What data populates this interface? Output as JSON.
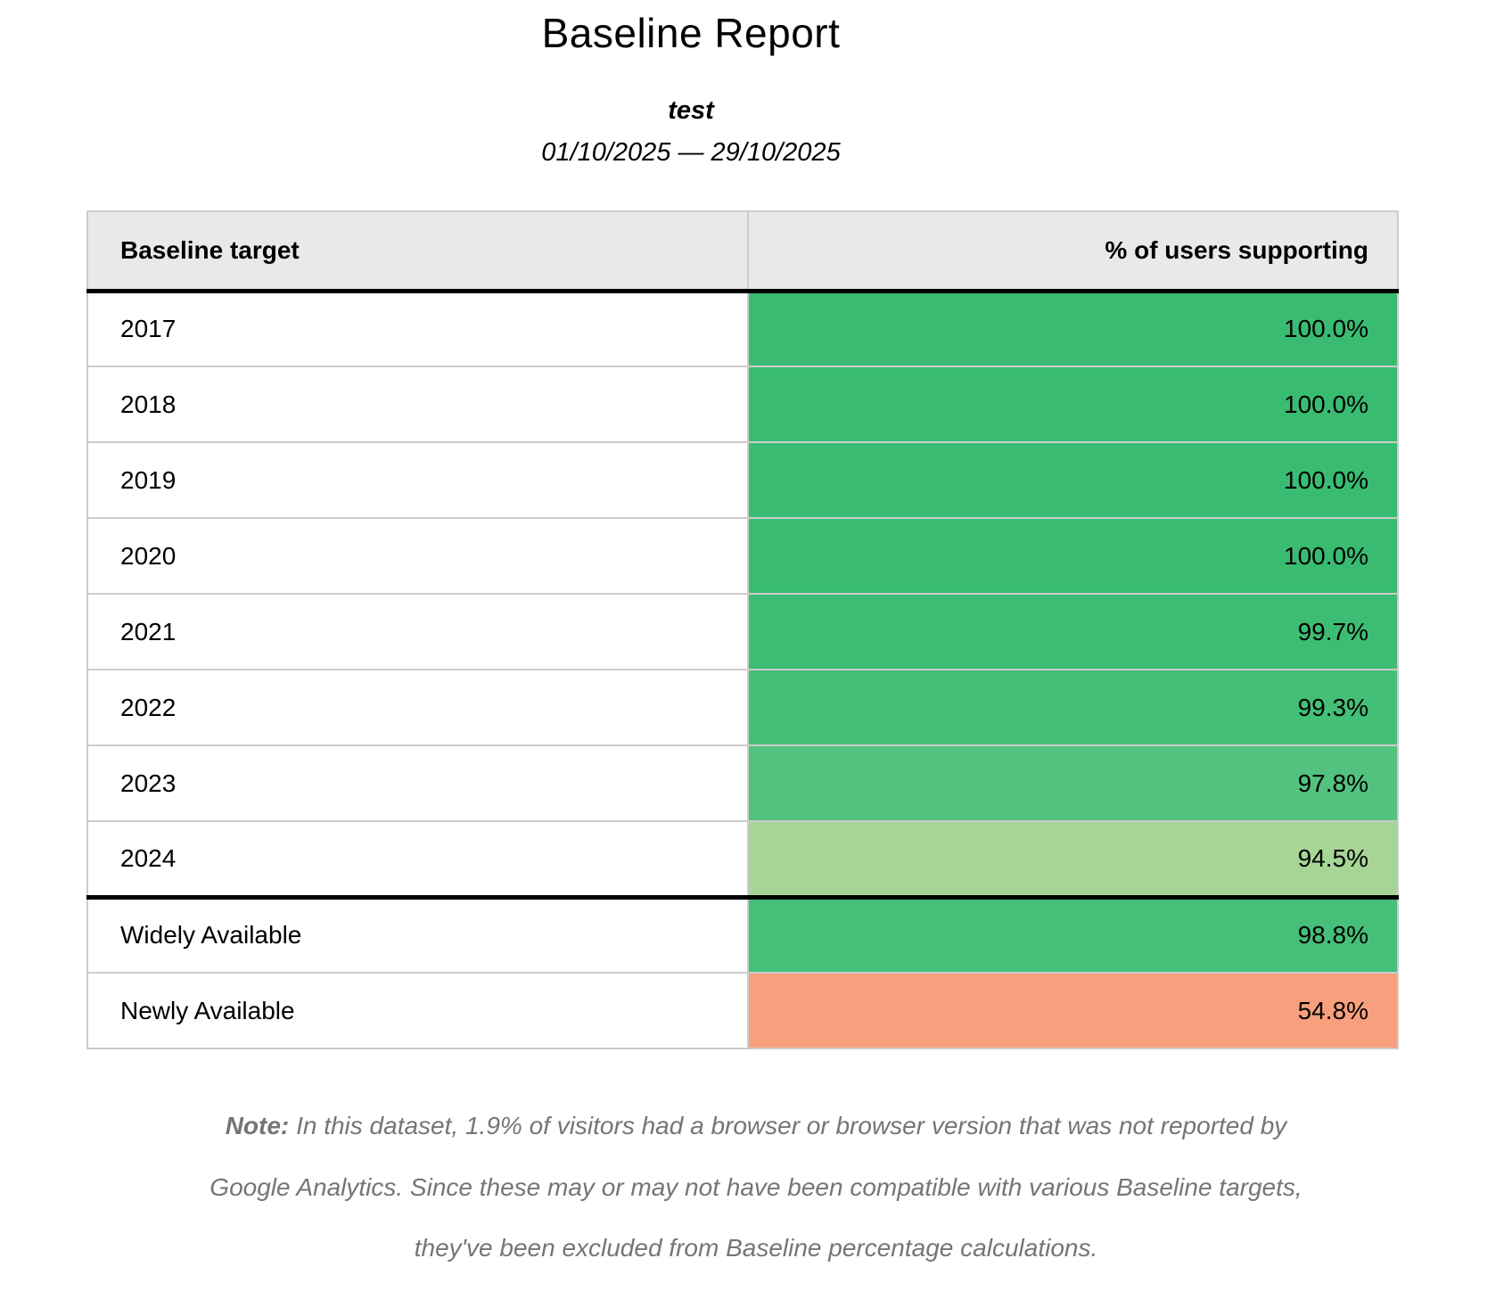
{
  "header": {
    "title": "Baseline Report",
    "subtitle": "test",
    "date_range": "01/10/2025 — 29/10/2025"
  },
  "table": {
    "columns": [
      {
        "label": "Baseline target"
      },
      {
        "label": "% of users supporting"
      }
    ],
    "rows": [
      {
        "target": "2017",
        "value": "100.0%",
        "color": "#39bc72"
      },
      {
        "target": "2018",
        "value": "100.0%",
        "color": "#39bc72"
      },
      {
        "target": "2019",
        "value": "100.0%",
        "color": "#39bc72"
      },
      {
        "target": "2020",
        "value": "100.0%",
        "color": "#39bc72"
      },
      {
        "target": "2021",
        "value": "99.7%",
        "color": "#3dbd74"
      },
      {
        "target": "2022",
        "value": "99.3%",
        "color": "#44bf77"
      },
      {
        "target": "2023",
        "value": "97.8%",
        "color": "#53c27e"
      },
      {
        "target": "2024",
        "value": "94.5%",
        "color": "#a6d595"
      },
      {
        "target": "Widely Available",
        "value": "98.8%",
        "color": "#46bf78"
      },
      {
        "target": "Newly Available",
        "value": "54.8%",
        "color": "#f8a07e"
      }
    ]
  },
  "note": {
    "label": "Note:",
    "text": "In this dataset, 1.9% of visitors had a browser or browser version that was not reported by Google Analytics. Since these may or may not have been compatible with various Baseline targets, they've been excluded from Baseline percentage calculations."
  },
  "colors": {
    "header_bg": "#e9e9e9",
    "grid_border": "#cccccc",
    "divider": "#000000",
    "note_text": "#757575"
  },
  "chart_data": {
    "type": "table",
    "title": "Baseline Report",
    "subtitle": "test",
    "date_range": "01/10/2025 — 29/10/2025",
    "columns": [
      "Baseline target",
      "% of users supporting"
    ],
    "rows": [
      [
        "2017",
        100.0
      ],
      [
        "2018",
        100.0
      ],
      [
        "2019",
        100.0
      ],
      [
        "2020",
        100.0
      ],
      [
        "2021",
        99.7
      ],
      [
        "2022",
        99.3
      ],
      [
        "2023",
        97.8
      ],
      [
        "2024",
        94.5
      ],
      [
        "Widely Available",
        98.8
      ],
      [
        "Newly Available",
        54.8
      ]
    ],
    "units": "% of users supporting",
    "value_color_scale": "green (high) to pale green to salmon (low)",
    "legend_position": "none",
    "grid": true
  }
}
